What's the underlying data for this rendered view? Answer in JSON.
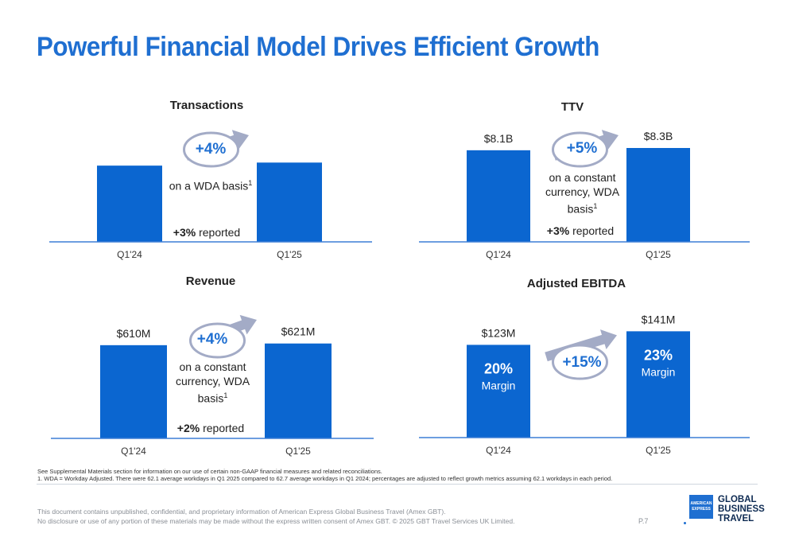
{
  "page": {
    "title": "Powerful Financial Model Drives Efficient Growth",
    "footnotes": [
      "See Supplemental Materials section for information on our use of certain non-GAAP financial measures and related reconciliations.",
      "1. WDA = Workday Adjusted. There were 62.1 average workdays in Q1 2025 compared to 62.7 average workdays in Q1 2024; percentages are adjusted to reflect growth metrics assuming 62.1 workdays in each period."
    ],
    "legal": [
      "This document contains unpublished, confidential, and proprietary information of American Express Global Business Travel (Amex GBT).",
      "No disclosure or use of any portion of these materials may be made without the express written consent of Amex GBT. © 2025 GBT Travel Services UK Limited."
    ],
    "page_number": "P.7",
    "logo": {
      "badge_line1": "AMERICAN",
      "badge_line2": "EXPRESS",
      "line1": "GLOBAL",
      "line2": "BUSINESS",
      "line3": "TRAVEL"
    }
  },
  "colors": {
    "bar": "#0b66d0",
    "accent": "#1f6fd1",
    "arrow": "#a3abc6",
    "axis": "#3d7fd6"
  },
  "panels": {
    "transactions": {
      "growth": "+4%",
      "note": "on a WDA basis",
      "note_sup": "1",
      "reported_pct": "+3%",
      "reported_word": "reported"
    },
    "ttv": {
      "growth": "+5%",
      "note": "on a constant currency, WDA basis",
      "note_sup": "1",
      "reported_pct": "+3%",
      "reported_word": "reported"
    },
    "revenue": {
      "growth": "+4%",
      "note": "on a constant currency, WDA basis",
      "note_sup": "1",
      "reported_pct": "+2%",
      "reported_word": "reported"
    },
    "ebitda": {
      "growth": "+15%"
    }
  },
  "chart_data": [
    {
      "type": "bar",
      "title": "Transactions",
      "categories": [
        "Q1'24",
        "Q1'25"
      ],
      "values": [
        100,
        104
      ],
      "data_labels": [
        "",
        ""
      ],
      "ylim": [
        0,
        120
      ]
    },
    {
      "type": "bar",
      "title": "TTV",
      "categories": [
        "Q1'24",
        "Q1'25"
      ],
      "values": [
        8.1,
        8.3
      ],
      "data_labels": [
        "$8.1B",
        "$8.3B"
      ],
      "ylim": [
        0,
        10.2
      ]
    },
    {
      "type": "bar",
      "title": "Revenue",
      "categories": [
        "Q1'24",
        "Q1'25"
      ],
      "values": [
        610,
        621
      ],
      "data_labels": [
        "$610M",
        "$621M"
      ],
      "ylim": [
        0,
        755
      ]
    },
    {
      "type": "bar",
      "title": "Adjusted EBITDA",
      "categories": [
        "Q1'24",
        "Q1'25"
      ],
      "values": [
        123,
        141
      ],
      "data_labels": [
        "$123M",
        "$141M"
      ],
      "margins": [
        "20%",
        "23%"
      ],
      "margin_label": "Margin",
      "ylim": [
        0,
        153
      ]
    }
  ]
}
